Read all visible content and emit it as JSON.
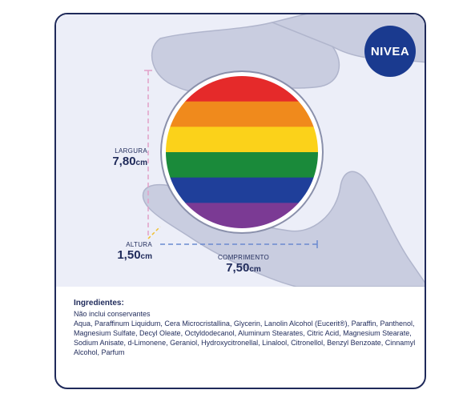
{
  "brand": {
    "logo_text": "NIVEA",
    "color": "#1a3a8f"
  },
  "dimensions": {
    "width": {
      "label": "LARGURA",
      "value": "7,80",
      "unit": "cm"
    },
    "height": {
      "label": "ALTURA",
      "value": "1,50",
      "unit": "cm"
    },
    "length": {
      "label": "COMPRIMENTO",
      "value": "7,50",
      "unit": "cm"
    }
  },
  "flag_colors": [
    "#e52a2a",
    "#f08a1c",
    "#fbd21a",
    "#1a8a3a",
    "#1f3f9a",
    "#7b3a94"
  ],
  "ingredients": {
    "title": "Ingredientes:",
    "note": "Não inclui conservantes",
    "list": "Aqua, Paraffinum Liquidum, Cera Microcristallina, Glycerin, Lanolin Alcohol (Eucerit®), Paraffin, Panthenol, Magnesium Sulfate, Decyl Oleate, Octyldodecanol, Aluminum Stearates, Citric Acid, Magnesium Stearate, Sodium Anisate, d-Limonene, Geraniol, Hydroxycitronellal, Linalool, Citronellol, Benzyl Benzoate, Cinnamyl Alcohol, Parfum"
  }
}
